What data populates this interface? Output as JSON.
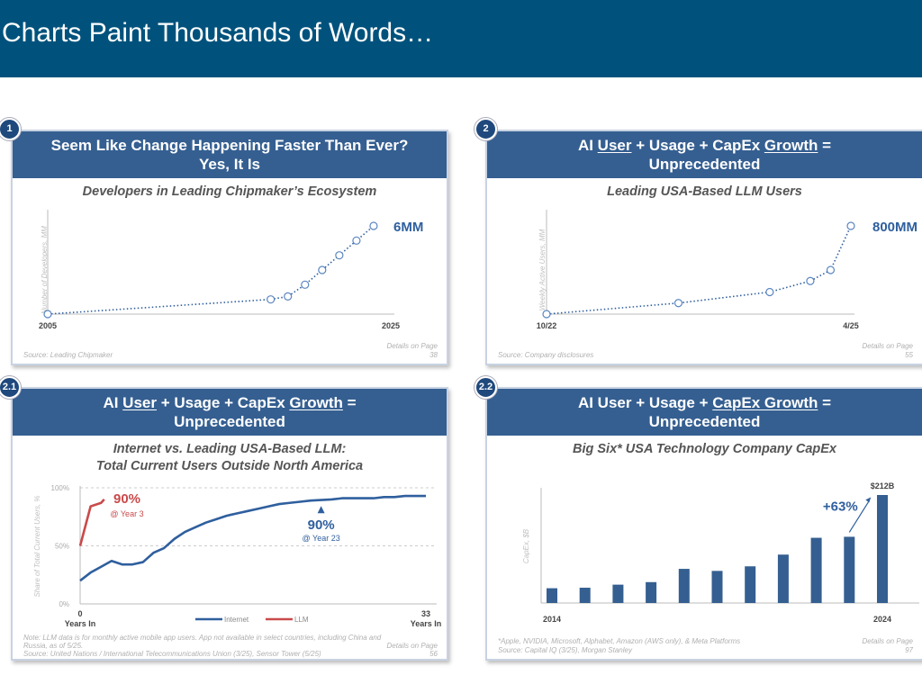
{
  "title": "Charts Paint Thousands of Words…",
  "colors": {
    "header": "#00527c",
    "panel_header": "#355f91",
    "series_blue": "#2f5f9e",
    "llm_red": "#c94a4a"
  },
  "panels": [
    {
      "badge": "1",
      "title_line1": "Seem Like Change Happening Faster Than Ever?",
      "title_line2": "Yes, It Is",
      "subtitle": "Developers in Leading Chipmaker’s Ecosystem",
      "source": "Source: Leading Chipmaker",
      "details": "Details on Page 38"
    },
    {
      "badge": "2",
      "title_parts": [
        "AI ",
        "User",
        " + Usage + CapEx ",
        "Growth",
        " ="
      ],
      "title_line2": "Unprecedented",
      "subtitle": "Leading USA-Based LLM Users",
      "source": "Source: Company disclosures",
      "details": "Details on Page 55"
    },
    {
      "badge": "2.1",
      "title_parts": [
        "AI ",
        "User",
        " + Usage + CapEx ",
        "Growth",
        " ="
      ],
      "title_line2": "Unprecedented",
      "subtitle_line1": "Internet vs. Leading USA-Based LLM:",
      "subtitle_line2": "Total Current Users Outside North America",
      "note": "Note: LLM data is for monthly active mobile app users. App not available in select countries, including China and Russia, as of 5/25.",
      "source": "Source: United Nations / International Telecommunications Union (3/25), Sensor Tower (5/25)",
      "details": "Details on Page 56"
    },
    {
      "badge": "2.2",
      "title_parts": [
        "AI User + Usage + ",
        "CapEx Growth",
        " ="
      ],
      "title_line2": "Unprecedented",
      "subtitle": "Big Six* USA Technology Company CapEx",
      "footnote": "*Apple, NVIDIA, Microsoft, Alphabet, Amazon (AWS only), & Meta Platforms",
      "source": "Source: Capital IQ (3/25), Morgan Stanley",
      "details": "Details on Page 97"
    }
  ],
  "chart_data": [
    {
      "type": "line",
      "ylabel": "Number of Developers, MM",
      "x_tick_labels": [
        "2005",
        "2025"
      ],
      "xlim": [
        2005,
        2025
      ],
      "ylim": [
        0,
        6
      ],
      "x": [
        2005,
        2018,
        2019,
        2020,
        2021,
        2022,
        2023,
        2024
      ],
      "values": [
        0,
        1.0,
        1.2,
        2.0,
        3.0,
        4.0,
        5.0,
        6.0
      ],
      "end_label": "6MM",
      "line_style": "dotted",
      "markers": "hollow-circle"
    },
    {
      "type": "line",
      "ylabel": "Weekly Active Users, MM",
      "x_tick_labels": [
        "10/22",
        "4/25"
      ],
      "x": [
        "10/22",
        "11/23",
        "8/24",
        "12/24",
        "2/25",
        "4/25"
      ],
      "x_months": [
        0,
        13,
        22,
        26,
        28,
        30
      ],
      "values": [
        0,
        100,
        200,
        300,
        400,
        800
      ],
      "ylim": [
        0,
        800
      ],
      "end_label": "800MM",
      "line_style": "dotted",
      "markers": "hollow-circle"
    },
    {
      "type": "line",
      "ylabel": "Share of Total Current Users, %",
      "y_ticks": [
        "0%",
        "50%",
        "100%"
      ],
      "ylim": [
        0,
        100
      ],
      "xlim": [
        0,
        33
      ],
      "x_tick_labels": [
        "0",
        "33"
      ],
      "x_axis_label": "Years In",
      "grid": "dashed-horizontal",
      "legend": "bottom-center",
      "series": [
        {
          "name": "Internet",
          "x": [
            0,
            1,
            2,
            3,
            4,
            5,
            6,
            7,
            8,
            9,
            10,
            11,
            12,
            13,
            14,
            15,
            16,
            17,
            18,
            19,
            20,
            21,
            22,
            23,
            24,
            25,
            26,
            27,
            28,
            29,
            30,
            31,
            32,
            33
          ],
          "values": [
            20,
            27,
            32,
            37,
            34,
            34,
            36,
            44,
            48,
            56,
            62,
            66,
            70,
            73,
            76,
            78,
            80,
            82,
            84,
            86,
            87,
            88,
            89,
            89.5,
            90,
            91,
            91,
            91,
            91,
            92,
            92,
            93,
            93,
            93
          ]
        },
        {
          "name": "LLM",
          "x": [
            0,
            1,
            2,
            2.3
          ],
          "values": [
            50,
            84,
            87,
            90
          ]
        }
      ],
      "annotations": [
        {
          "text": "90%",
          "sub": "@ Year 3",
          "series": "LLM"
        },
        {
          "text": "90%",
          "sub": "@ Year 23",
          "series": "Internet"
        }
      ]
    },
    {
      "type": "bar",
      "ylabel": "CapEx, $B",
      "categories": [
        "2014",
        "2015",
        "2016",
        "2017",
        "2018",
        "2019",
        "2020",
        "2021",
        "2022",
        "2023",
        "2024"
      ],
      "x_tick_labels": [
        "2014",
        "2024"
      ],
      "values": [
        29,
        30,
        36,
        41,
        67,
        63,
        72,
        95,
        128,
        130,
        212
      ],
      "ylim": [
        0,
        212
      ],
      "data_label": "$212B",
      "annotation": "+63%"
    }
  ]
}
